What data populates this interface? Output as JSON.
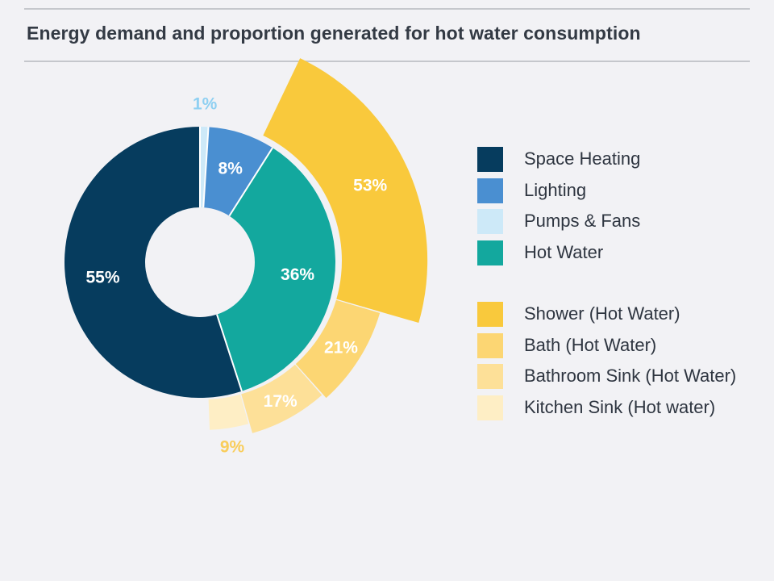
{
  "title": "Energy demand and proportion generated for hot water consumption",
  "chart_data": {
    "type": "pie",
    "variant": "donut-with-exploded-outer-ring",
    "title": "Energy demand and proportion generated for hot water consumption",
    "inner_ring": {
      "name": "Energy demand",
      "slices": [
        {
          "name": "Pumps & Fans",
          "value": 1,
          "label": "1%",
          "color": "#cde9f8",
          "label_color": "#8fd0f2",
          "label_outside": true
        },
        {
          "name": "Lighting",
          "value": 8,
          "label": "8%",
          "color": "#4a8fd1",
          "label_color": "#ffffff"
        },
        {
          "name": "Hot Water",
          "value": 36,
          "label": "36%",
          "color": "#13a89e",
          "label_color": "#ffffff"
        },
        {
          "name": "Space Heating",
          "value": 55,
          "label": "55%",
          "color": "#063c5e",
          "label_color": "#ffffff"
        }
      ]
    },
    "outer_ring": {
      "name": "Hot water consumption breakdown",
      "parent": "Hot Water",
      "slices": [
        {
          "name": "Shower (Hot Water)",
          "value": 53,
          "label": "53%",
          "color": "#f9c93c",
          "label_color": "#ffffff"
        },
        {
          "name": "Bath (Hot Water)",
          "value": 21,
          "label": "21%",
          "color": "#fcd673",
          "label_color": "#ffffff"
        },
        {
          "name": "Bathroom Sink (Hot Water)",
          "value": 17,
          "label": "17%",
          "color": "#fde098",
          "label_color": "#ffffff"
        },
        {
          "name": "Kitchen Sink (Hot water)",
          "value": 9,
          "label": "9%",
          "color": "#feeec5",
          "label_color": "#f9cd5a",
          "label_outside": true
        }
      ]
    },
    "legend": {
      "placement": "right",
      "groups": [
        [
          {
            "label": "Space Heating",
            "color": "#063c5e"
          },
          {
            "label": "Lighting",
            "color": "#4a8fd1"
          },
          {
            "label": "Pumps & Fans",
            "color": "#cde9f8"
          },
          {
            "label": "Hot Water",
            "color": "#13a89e"
          }
        ],
        [
          {
            "label": "Shower (Hot Water)",
            "color": "#f9c93c"
          },
          {
            "label": "Bath (Hot Water)",
            "color": "#fcd673"
          },
          {
            "label": "Bathroom Sink (Hot Water)",
            "color": "#fde098"
          },
          {
            "label": "Kitchen Sink (Hot water)",
            "color": "#feeec5"
          }
        ]
      ]
    }
  }
}
